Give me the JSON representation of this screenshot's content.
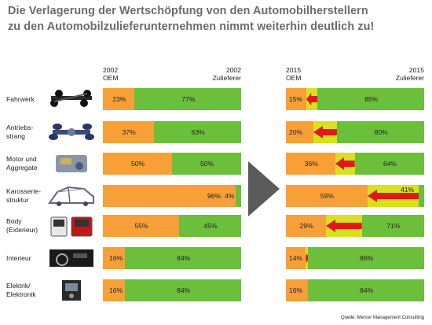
{
  "title": {
    "line1": "Die Verlagerung der Wertschöpfung von den Automobilherstellern",
    "line2": "zu den Automobilzulieferunternehmen nimmt weiterhin deutlich zu!"
  },
  "left_header": {
    "year_oem": "2002",
    "oem": "OEM",
    "year_zul": "2002",
    "zul": "Zulieferer"
  },
  "right_header": {
    "year_oem": "2015",
    "oem": "OEM",
    "year_zul": "2015",
    "zul": "Zulieferer"
  },
  "source": "Quelle: Mercer Management Consulting",
  "colors": {
    "oem": "#f8a038",
    "zulieferer": "#6cbf3a",
    "shift": "#d8e020",
    "arrow": "#e01818",
    "title": "#6b6b6b"
  },
  "chart_data": {
    "type": "bar",
    "categories": [
      "Fahrwerk",
      "Antriebs-strang",
      "Motor und Aggregate",
      "Karosserie-struktur",
      "Body (Exterieur)",
      "Interieur",
      "Elektrik/ Elektronik"
    ],
    "series_2002": {
      "oem": [
        23,
        37,
        50,
        96,
        55,
        16,
        16
      ],
      "zulieferer": [
        77,
        63,
        50,
        4,
        45,
        84,
        84
      ]
    },
    "series_2015": {
      "oem": [
        15,
        20,
        36,
        59,
        29,
        14,
        16
      ],
      "zulieferer": [
        85,
        80,
        64,
        41,
        71,
        86,
        84
      ]
    },
    "labels_2002": {
      "oem": [
        "23%",
        "37%",
        "50%",
        "96%",
        "55%",
        "16%",
        "16%"
      ],
      "zulieferer": [
        "77%",
        "63%",
        "50%",
        "4%",
        "45%",
        "84%",
        "84%"
      ]
    },
    "labels_2015": {
      "oem": [
        "15%",
        "20%",
        "36%",
        "59%",
        "29%",
        "14%",
        "16%"
      ],
      "zulieferer": [
        "85%",
        "80%",
        "64%",
        "41%",
        "71%",
        "86%",
        "84%"
      ]
    },
    "row_labels": [
      [
        "Fahrwerk"
      ],
      [
        "Antriebs-",
        "strang"
      ],
      [
        "Motor und",
        "Aggregate"
      ],
      [
        "Karosserie-",
        "struktur"
      ],
      [
        "Body",
        "(Exterieur)"
      ],
      [
        "Interieur"
      ],
      [
        "Elektrik/",
        "Elektronik"
      ]
    ],
    "icons": [
      "chassis-icon",
      "drivetrain-icon",
      "engine-icon",
      "body-frame-icon",
      "car-doors-icon",
      "interior-icon",
      "electronics-icon"
    ],
    "ylim": [
      0,
      100
    ]
  }
}
